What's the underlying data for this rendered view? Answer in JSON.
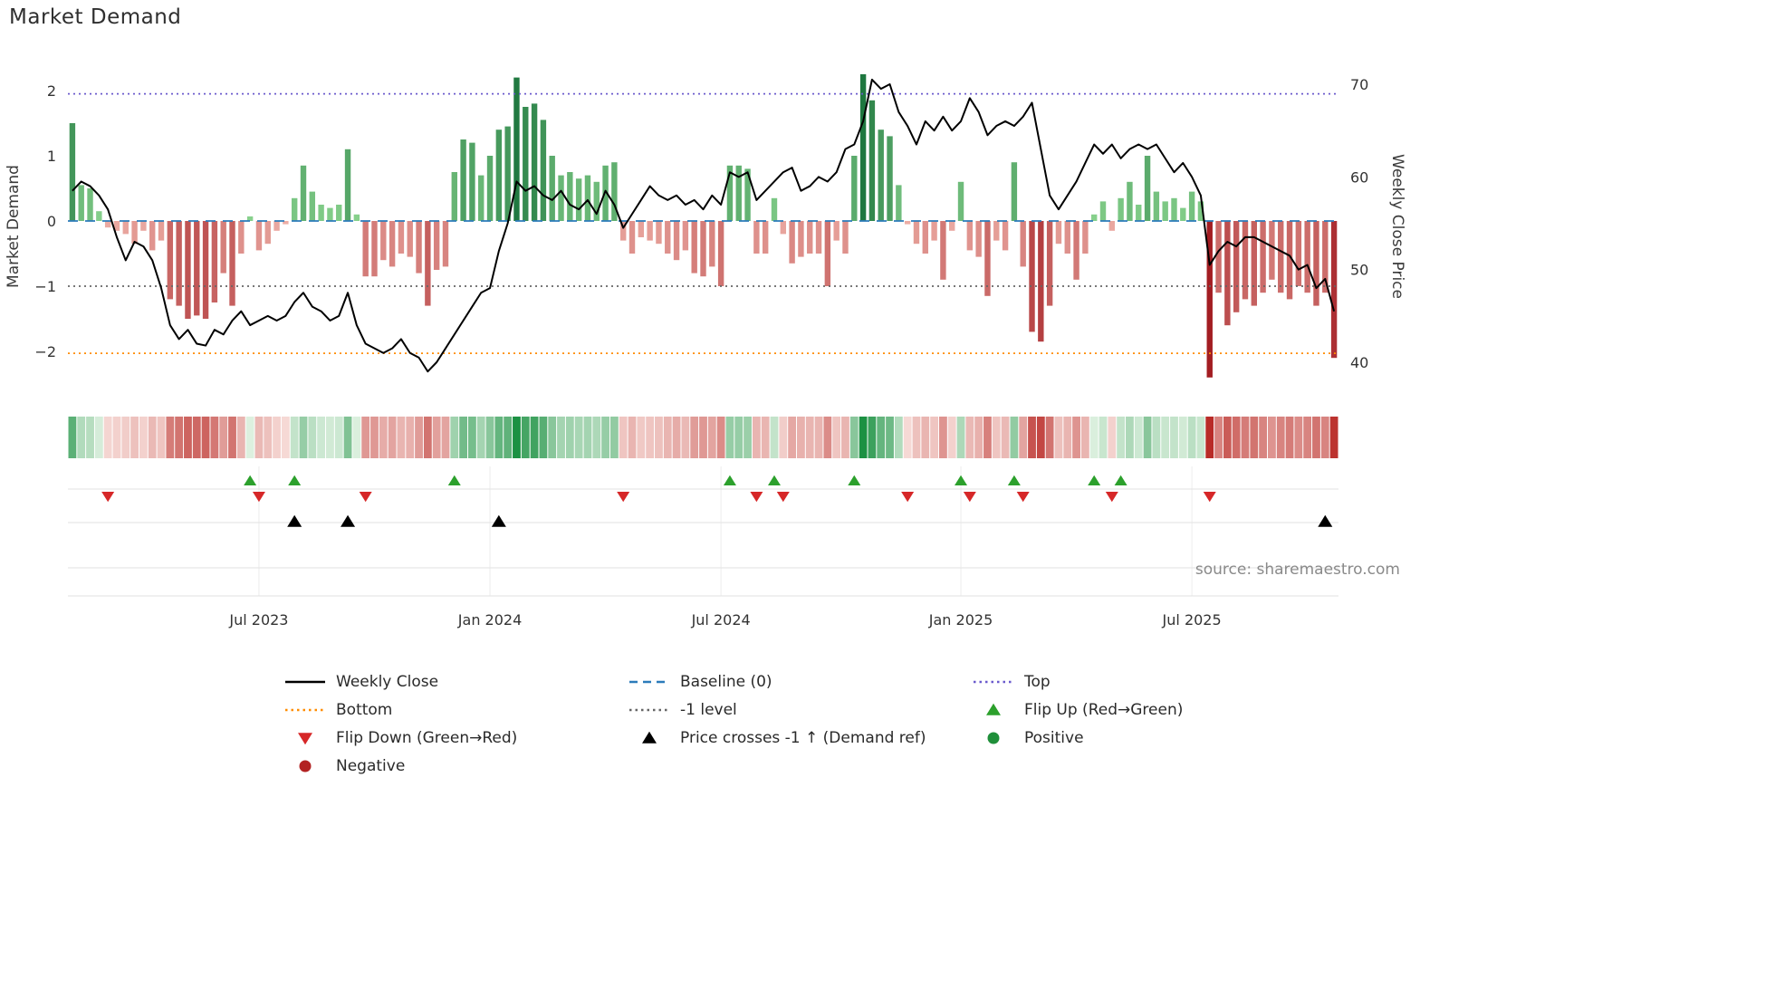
{
  "title": "Market Demand",
  "source": "source: sharemaestro.com",
  "colors": {
    "weekly_close": "#000000",
    "baseline": "#2b7bba",
    "top": "#6a5acd",
    "bottom": "#ff8c00",
    "minus_one": "#666666",
    "flip_up": "#2ca02c",
    "flip_down": "#d62728",
    "price_cross": "#000000",
    "positive": "#1f8f3a",
    "negative": "#b22222",
    "bar_pos_lo": "#8bd48f",
    "bar_pos_hi": "#17713a",
    "bar_neg_lo": "#eeb0a8",
    "bar_neg_hi": "#a31d22",
    "heat_pos_lo": "#e3f3e4",
    "heat_pos_hi": "#1c9143",
    "heat_neg_lo": "#f7ddd9",
    "heat_neg_hi": "#b92b27"
  },
  "chart_data": {
    "type": "bar+line",
    "title": "Market Demand",
    "x_start": "2023-02-06",
    "x_freq": "weekly",
    "x_ticks": [
      {
        "index": 21,
        "label": "Jul 2023"
      },
      {
        "index": 47,
        "label": "Jan 2024"
      },
      {
        "index": 73,
        "label": "Jul 2024"
      },
      {
        "index": 100,
        "label": "Jan 2025"
      },
      {
        "index": 126,
        "label": "Jul 2025"
      }
    ],
    "left_axis": {
      "label": "Market Demand",
      "ticks": [
        2,
        1,
        0,
        -1,
        -2
      ],
      "tick_labels": [
        "2",
        "1",
        "0",
        "−1",
        "−2"
      ],
      "range": [
        -2.65,
        2.5
      ]
    },
    "right_axis": {
      "label": "Weekly Close Price",
      "ticks": [
        70,
        60,
        50,
        40
      ],
      "tick_labels": [
        "70",
        "60",
        "50",
        "40"
      ],
      "range": [
        36.4,
        72.7
      ]
    },
    "series": [
      {
        "name": "Market Demand",
        "type": "bar",
        "axis": "left",
        "values": [
          1.5,
          0.55,
          0.5,
          0.15,
          -0.1,
          -0.15,
          -0.2,
          -0.35,
          -0.15,
          -0.45,
          -0.3,
          -1.2,
          -1.3,
          -1.5,
          -1.45,
          -1.5,
          -1.25,
          -0.8,
          -1.3,
          -0.5,
          0.07,
          -0.45,
          -0.35,
          -0.15,
          -0.05,
          0.35,
          0.85,
          0.45,
          0.25,
          0.2,
          0.25,
          1.1,
          0.1,
          -0.85,
          -0.85,
          -0.6,
          -0.7,
          -0.5,
          -0.55,
          -0.8,
          -1.3,
          -0.75,
          -0.7,
          0.75,
          1.25,
          1.2,
          0.7,
          1.0,
          1.4,
          1.45,
          2.2,
          1.75,
          1.8,
          1.55,
          1.0,
          0.7,
          0.75,
          0.65,
          0.7,
          0.6,
          0.85,
          0.9,
          -0.3,
          -0.5,
          -0.25,
          -0.3,
          -0.35,
          -0.5,
          -0.6,
          -0.45,
          -0.8,
          -0.85,
          -0.7,
          -1.0,
          0.85,
          0.85,
          0.8,
          -0.5,
          -0.5,
          0.35,
          -0.2,
          -0.65,
          -0.55,
          -0.5,
          -0.5,
          -1.0,
          -0.3,
          -0.5,
          1.0,
          2.25,
          1.85,
          1.4,
          1.3,
          0.55,
          -0.05,
          -0.35,
          -0.5,
          -0.3,
          -0.9,
          -0.15,
          0.6,
          -0.45,
          -0.55,
          -1.15,
          -0.3,
          -0.45,
          0.9,
          -0.7,
          -1.7,
          -1.85,
          -1.3,
          -0.35,
          -0.5,
          -0.9,
          -0.5,
          0.1,
          0.3,
          -0.15,
          0.35,
          0.6,
          0.25,
          1.0,
          0.45,
          0.3,
          0.35,
          0.2,
          0.45,
          0.3,
          -2.4,
          -1.1,
          -1.6,
          -1.4,
          -1.2,
          -1.3,
          -1.1,
          -0.9,
          -1.1,
          -1.2,
          -1.0,
          -1.1,
          -1.3,
          -1.1,
          -2.1
        ]
      },
      {
        "name": "Weekly Close",
        "type": "line",
        "axis": "right",
        "values": [
          58.5,
          59.5,
          59.0,
          58.0,
          56.5,
          53.5,
          51.0,
          53.0,
          52.5,
          51.0,
          48.0,
          44.0,
          42.5,
          43.5,
          42.0,
          41.8,
          43.5,
          43.0,
          44.5,
          45.5,
          44.0,
          44.5,
          45.0,
          44.5,
          45.0,
          46.5,
          47.5,
          46.0,
          45.5,
          44.5,
          45.0,
          47.5,
          44.0,
          42.0,
          41.5,
          41.0,
          41.5,
          42.5,
          41.0,
          40.5,
          39.0,
          40.0,
          41.5,
          43.0,
          44.5,
          46.0,
          47.5,
          48.0,
          52.0,
          55.0,
          59.5,
          58.5,
          59.0,
          58.0,
          57.5,
          58.5,
          57.0,
          56.5,
          57.5,
          56.0,
          58.5,
          57.0,
          54.5,
          56.0,
          57.5,
          59.0,
          58.0,
          57.5,
          58.0,
          57.0,
          57.5,
          56.5,
          58.0,
          57.0,
          60.5,
          60.0,
          60.5,
          57.5,
          58.5,
          59.5,
          60.5,
          61.0,
          58.5,
          59.0,
          60.0,
          59.5,
          60.5,
          63.0,
          63.5,
          66.0,
          70.5,
          69.5,
          70.0,
          67.0,
          65.5,
          63.5,
          66.0,
          65.0,
          66.5,
          65.0,
          66.0,
          68.5,
          67.0,
          64.5,
          65.5,
          66.0,
          65.5,
          66.5,
          68.0,
          63.0,
          58.0,
          56.5,
          58.0,
          59.5,
          61.5,
          63.5,
          62.5,
          63.5,
          62.0,
          63.0,
          63.5,
          63.0,
          63.5,
          62.0,
          60.5,
          61.5,
          60.0,
          58.0,
          50.5,
          52.0,
          53.0,
          52.5,
          53.5,
          53.5,
          53.0,
          52.5,
          52.0,
          51.5,
          50.0,
          50.5,
          48.0,
          49.0,
          45.5
        ]
      }
    ],
    "reference_lines": [
      {
        "name": "Top",
        "value": 1.95,
        "axis": "left",
        "style": "dotted",
        "color": "#6a5acd"
      },
      {
        "name": "Baseline (0)",
        "value": 0,
        "axis": "left",
        "style": "dashed",
        "color": "#2b7bba"
      },
      {
        "name": "-1 level",
        "value": -1,
        "axis": "left",
        "style": "dotted",
        "color": "#666666"
      },
      {
        "name": "Bottom",
        "value": -2.03,
        "axis": "left",
        "style": "dotted",
        "color": "#ff8c00"
      }
    ],
    "markers": {
      "flip_up_indices": [
        20,
        25,
        43,
        74,
        79,
        88,
        100,
        106,
        115,
        118
      ],
      "flip_down_indices": [
        4,
        21,
        33,
        62,
        77,
        80,
        94,
        101,
        107,
        117,
        128
      ],
      "price_cross_up_indices": [
        25,
        31,
        48,
        141
      ]
    },
    "heatmap": {
      "source_series": "Market Demand",
      "note": "weekly demand values rendered as red/green intensity strip"
    }
  },
  "legend": [
    {
      "label": "Weekly Close",
      "swatch": "line-solid",
      "color": "#000000"
    },
    {
      "label": "Baseline (0)",
      "swatch": "line-dashed",
      "color": "#2b7bba"
    },
    {
      "label": "Top",
      "swatch": "line-dotted",
      "color": "#6a5acd"
    },
    {
      "label": "Bottom",
      "swatch": "line-dotted",
      "color": "#ff8c00"
    },
    {
      "label": "-1 level",
      "swatch": "line-dotted",
      "color": "#666666"
    },
    {
      "label": "Flip Up (Red→Green)",
      "swatch": "triangle-up",
      "color": "#2ca02c"
    },
    {
      "label": "Flip Down (Green→Red)",
      "swatch": "triangle-down",
      "color": "#d62728"
    },
    {
      "label": "Price crosses -1 ↑ (Demand ref)",
      "swatch": "triangle-up",
      "color": "#000000"
    },
    {
      "label": "Positive",
      "swatch": "circle",
      "color": "#1f8f3a"
    },
    {
      "label": "Negative",
      "swatch": "circle",
      "color": "#b22222"
    }
  ]
}
